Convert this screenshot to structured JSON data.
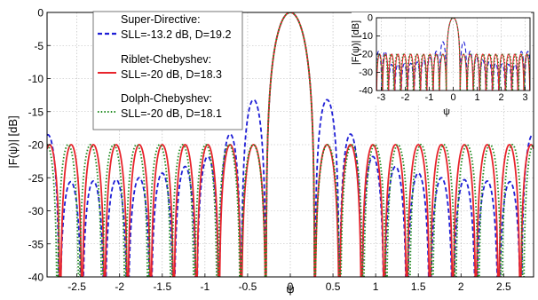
{
  "chart_data": [
    {
      "type": "line",
      "xlabel": "ψ",
      "ylabel": "|F(ψ)|  [dB]",
      "xlim": [
        -2.85,
        2.85
      ],
      "ylim": [
        -40,
        0
      ],
      "xticks": [
        "-2.5",
        "-2",
        "-1.5",
        "-1",
        "-0.5",
        "0",
        "0.5",
        "1",
        "1.5",
        "2",
        "2.5"
      ],
      "yticks": [
        "0",
        "-5",
        "-10",
        "-15",
        "-20",
        "-25",
        "-30",
        "-35",
        "-40"
      ],
      "grid": true,
      "legend_position": "top-left",
      "series": [
        {
          "name": "Super-Directive:",
          "legend_line2": "SLL=-13.2 dB, D=19.2",
          "color": "#1f1fd6",
          "dash": "dashed",
          "peaks": [
            [
              0,
              0
            ],
            [
              0.45,
              -13.2
            ],
            [
              0.7,
              -18.4
            ],
            [
              0.97,
              -21.8
            ],
            [
              1.23,
              -23.3
            ],
            [
              1.5,
              -24.3
            ],
            [
              1.77,
              -25.0
            ],
            [
              2.04,
              -25.3
            ],
            [
              2.31,
              -25.5
            ],
            [
              2.57,
              -25.6
            ],
            [
              2.84,
              -18.5
            ]
          ]
        },
        {
          "name": "Riblet-Chebyshev:",
          "legend_line2": "SLL=-20 dB, D=18.3",
          "color": "#e8242c",
          "dash": "solid",
          "peaks": [
            [
              0,
              0
            ],
            [
              0.45,
              -20
            ],
            [
              0.7,
              -20
            ],
            [
              0.97,
              -20
            ],
            [
              1.23,
              -20
            ],
            [
              1.5,
              -20
            ],
            [
              1.77,
              -20
            ],
            [
              2.04,
              -20
            ],
            [
              2.31,
              -20
            ],
            [
              2.57,
              -20
            ],
            [
              2.82,
              -20
            ]
          ]
        },
        {
          "name": "Dolph-Chebyshev:",
          "legend_line2": "SLL=-20 dB, D=18.1",
          "color": "#1e8a1e",
          "dash": "dotted",
          "peaks": [
            [
              0,
              0
            ],
            [
              0.45,
              -20
            ],
            [
              0.72,
              -20
            ],
            [
              0.99,
              -20
            ],
            [
              1.26,
              -20
            ],
            [
              1.53,
              -20
            ],
            [
              1.8,
              -20
            ],
            [
              2.07,
              -20
            ],
            [
              2.34,
              -20
            ],
            [
              2.61,
              -20
            ],
            [
              2.85,
              -20
            ]
          ]
        }
      ]
    },
    {
      "type": "line",
      "xlabel": "ψ",
      "ylabel": "|F(ψ)|  [dB]",
      "xlim": [
        -3.2,
        3.2
      ],
      "ylim": [
        -40,
        0
      ],
      "xticks": [
        "-3",
        "-2",
        "-1",
        "0",
        "1",
        "2",
        "3"
      ],
      "yticks": [
        "0",
        "-10",
        "-20",
        "-30",
        "-40"
      ],
      "grid": true
    }
  ]
}
